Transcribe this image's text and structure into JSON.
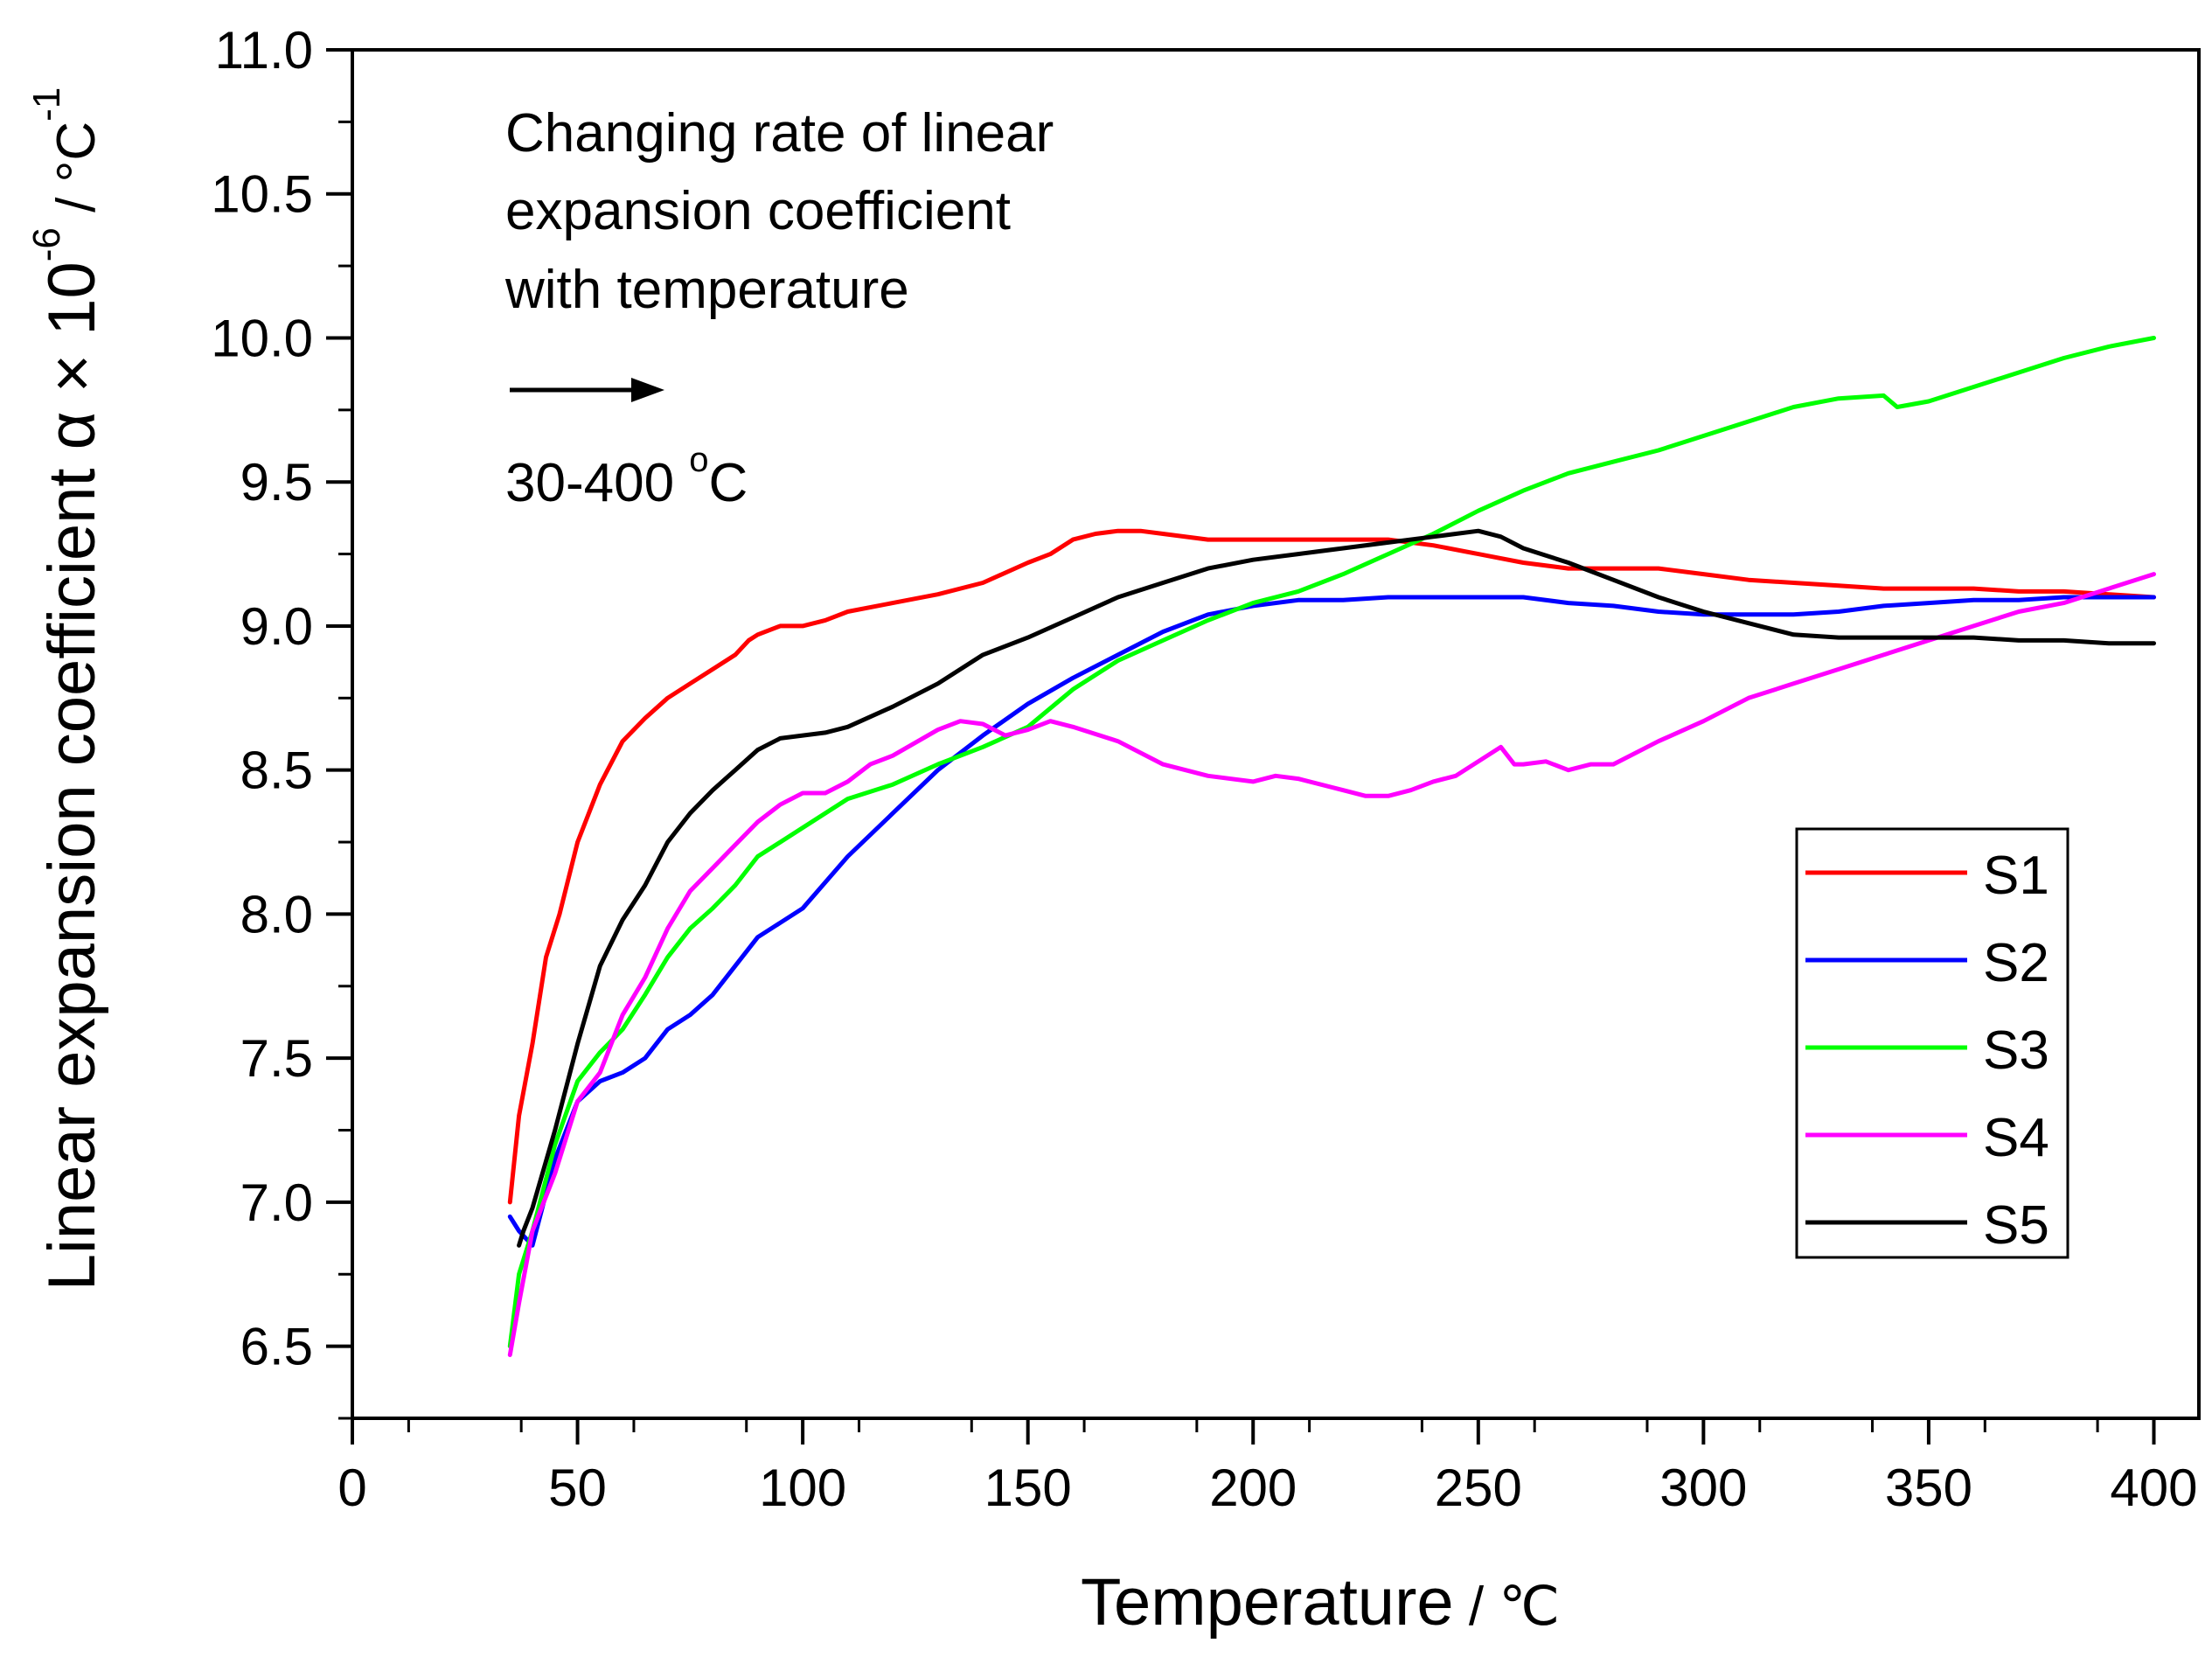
{
  "chart_data": {
    "type": "line",
    "xlabel": "Temperature",
    "xunit": "℃",
    "ylabel": "Linear expansion coefficient α × 10",
    "ylabel_exp": "-6",
    "yunit": " / °C",
    "yunit_exp": "-1",
    "xlim": [
      0,
      410
    ],
    "ylim": [
      6.25,
      11.0
    ],
    "xticks": [
      0,
      50,
      100,
      150,
      200,
      250,
      300,
      350,
      400
    ],
    "yticks": [
      6.5,
      7.0,
      7.5,
      8.0,
      8.5,
      9.0,
      9.5,
      10.0,
      10.5,
      11.0
    ],
    "xtick_labels": [
      "0",
      "50",
      "100",
      "150",
      "200",
      "250",
      "300",
      "350",
      "400"
    ],
    "ytick_labels": [
      "6.5",
      "7.0",
      "7.5",
      "8.0",
      "8.5",
      "9.0",
      "9.5",
      "10.0",
      "10.5",
      "11.0"
    ],
    "annotation": {
      "lines": [
        "Changing rate of linear",
        "expansion coefficient",
        "with temperature"
      ],
      "range_text": "30-400 ",
      "range_sup": "o",
      "range_unit": "C"
    },
    "legend": {
      "position": "right"
    },
    "series": [
      {
        "name": "S1",
        "color": "#ff0000",
        "x": [
          35,
          37,
          40,
          43,
          46,
          50,
          55,
          60,
          65,
          70,
          75,
          80,
          85,
          88,
          90,
          95,
          100,
          105,
          110,
          120,
          130,
          140,
          150,
          155,
          160,
          165,
          170,
          175,
          180,
          190,
          200,
          210,
          220,
          230,
          240,
          250,
          260,
          270,
          280,
          290,
          300,
          310,
          320,
          330,
          340,
          350,
          360,
          370,
          380,
          390,
          400
        ],
        "y": [
          7.0,
          7.3,
          7.55,
          7.85,
          8.0,
          8.25,
          8.45,
          8.6,
          8.68,
          8.75,
          8.8,
          8.85,
          8.9,
          8.95,
          8.97,
          9.0,
          9.0,
          9.02,
          9.05,
          9.08,
          9.11,
          9.15,
          9.22,
          9.25,
          9.3,
          9.32,
          9.33,
          9.33,
          9.32,
          9.3,
          9.3,
          9.3,
          9.3,
          9.3,
          9.28,
          9.25,
          9.22,
          9.2,
          9.2,
          9.2,
          9.18,
          9.16,
          9.15,
          9.14,
          9.13,
          9.13,
          9.13,
          9.12,
          9.12,
          9.11,
          9.1
        ]
      },
      {
        "name": "S2",
        "color": "#0000ff",
        "x": [
          35,
          37,
          40,
          45,
          50,
          55,
          60,
          65,
          70,
          75,
          80,
          85,
          90,
          95,
          100,
          110,
          120,
          130,
          140,
          150,
          160,
          170,
          180,
          190,
          200,
          210,
          220,
          230,
          240,
          250,
          260,
          270,
          280,
          290,
          300,
          310,
          320,
          330,
          340,
          350,
          360,
          370,
          380,
          390,
          400
        ],
        "y": [
          6.95,
          6.9,
          6.85,
          7.15,
          7.35,
          7.42,
          7.45,
          7.5,
          7.6,
          7.65,
          7.72,
          7.82,
          7.92,
          7.97,
          8.02,
          8.2,
          8.35,
          8.5,
          8.62,
          8.73,
          8.82,
          8.9,
          8.98,
          9.04,
          9.07,
          9.09,
          9.09,
          9.1,
          9.1,
          9.1,
          9.1,
          9.08,
          9.07,
          9.05,
          9.04,
          9.04,
          9.04,
          9.05,
          9.07,
          9.08,
          9.09,
          9.09,
          9.1,
          9.1,
          9.1
        ]
      },
      {
        "name": "S3",
        "color": "#00ff00",
        "x": [
          35,
          37,
          40,
          45,
          50,
          55,
          60,
          65,
          70,
          75,
          80,
          85,
          90,
          95,
          100,
          110,
          120,
          130,
          140,
          150,
          160,
          170,
          180,
          190,
          200,
          210,
          220,
          230,
          240,
          250,
          260,
          270,
          280,
          290,
          300,
          310,
          320,
          330,
          340,
          343,
          350,
          360,
          370,
          380,
          390,
          400
        ],
        "y": [
          6.5,
          6.75,
          6.9,
          7.2,
          7.42,
          7.52,
          7.6,
          7.72,
          7.85,
          7.95,
          8.02,
          8.1,
          8.2,
          8.25,
          8.3,
          8.4,
          8.45,
          8.52,
          8.58,
          8.65,
          8.78,
          8.88,
          8.95,
          9.02,
          9.08,
          9.12,
          9.18,
          9.25,
          9.32,
          9.4,
          9.47,
          9.53,
          9.57,
          9.61,
          9.66,
          9.71,
          9.76,
          9.79,
          9.8,
          9.76,
          9.78,
          9.83,
          9.88,
          9.93,
          9.97,
          10.0
        ]
      },
      {
        "name": "S4",
        "color": "#ff00ff",
        "x": [
          35,
          37,
          40,
          45,
          50,
          55,
          60,
          65,
          70,
          75,
          80,
          85,
          90,
          95,
          100,
          105,
          110,
          115,
          120,
          130,
          135,
          140,
          145,
          150,
          155,
          160,
          170,
          180,
          190,
          200,
          205,
          210,
          220,
          225,
          230,
          235,
          240,
          245,
          250,
          255,
          258,
          260,
          265,
          270,
          275,
          280,
          290,
          300,
          310,
          320,
          330,
          340,
          350,
          360,
          370,
          380,
          390,
          400
        ],
        "y": [
          6.47,
          6.65,
          6.9,
          7.1,
          7.35,
          7.45,
          7.65,
          7.78,
          7.95,
          8.08,
          8.16,
          8.24,
          8.32,
          8.38,
          8.42,
          8.42,
          8.46,
          8.52,
          8.55,
          8.64,
          8.67,
          8.66,
          8.62,
          8.64,
          8.67,
          8.65,
          8.6,
          8.52,
          8.48,
          8.46,
          8.48,
          8.47,
          8.43,
          8.41,
          8.41,
          8.43,
          8.46,
          8.48,
          8.53,
          8.58,
          8.52,
          8.52,
          8.53,
          8.5,
          8.52,
          8.52,
          8.6,
          8.67,
          8.75,
          8.8,
          8.85,
          8.9,
          8.95,
          9.0,
          9.05,
          9.08,
          9.13,
          9.18
        ]
      },
      {
        "name": "S5",
        "color": "#000000",
        "x": [
          37,
          38,
          40,
          45,
          50,
          55,
          60,
          65,
          70,
          75,
          80,
          85,
          90,
          95,
          100,
          105,
          110,
          120,
          130,
          140,
          150,
          160,
          170,
          180,
          190,
          200,
          210,
          220,
          230,
          240,
          250,
          255,
          260,
          270,
          280,
          290,
          300,
          310,
          320,
          330,
          340,
          350,
          360,
          370,
          380,
          390,
          400
        ],
        "y": [
          6.85,
          6.9,
          6.98,
          7.25,
          7.55,
          7.82,
          7.98,
          8.1,
          8.25,
          8.35,
          8.43,
          8.5,
          8.57,
          8.61,
          8.62,
          8.63,
          8.65,
          8.72,
          8.8,
          8.9,
          8.96,
          9.03,
          9.1,
          9.15,
          9.2,
          9.23,
          9.25,
          9.27,
          9.29,
          9.31,
          9.33,
          9.31,
          9.27,
          9.22,
          9.16,
          9.1,
          9.05,
          9.01,
          8.97,
          8.96,
          8.96,
          8.96,
          8.96,
          8.95,
          8.95,
          8.94,
          8.94
        ]
      }
    ]
  }
}
